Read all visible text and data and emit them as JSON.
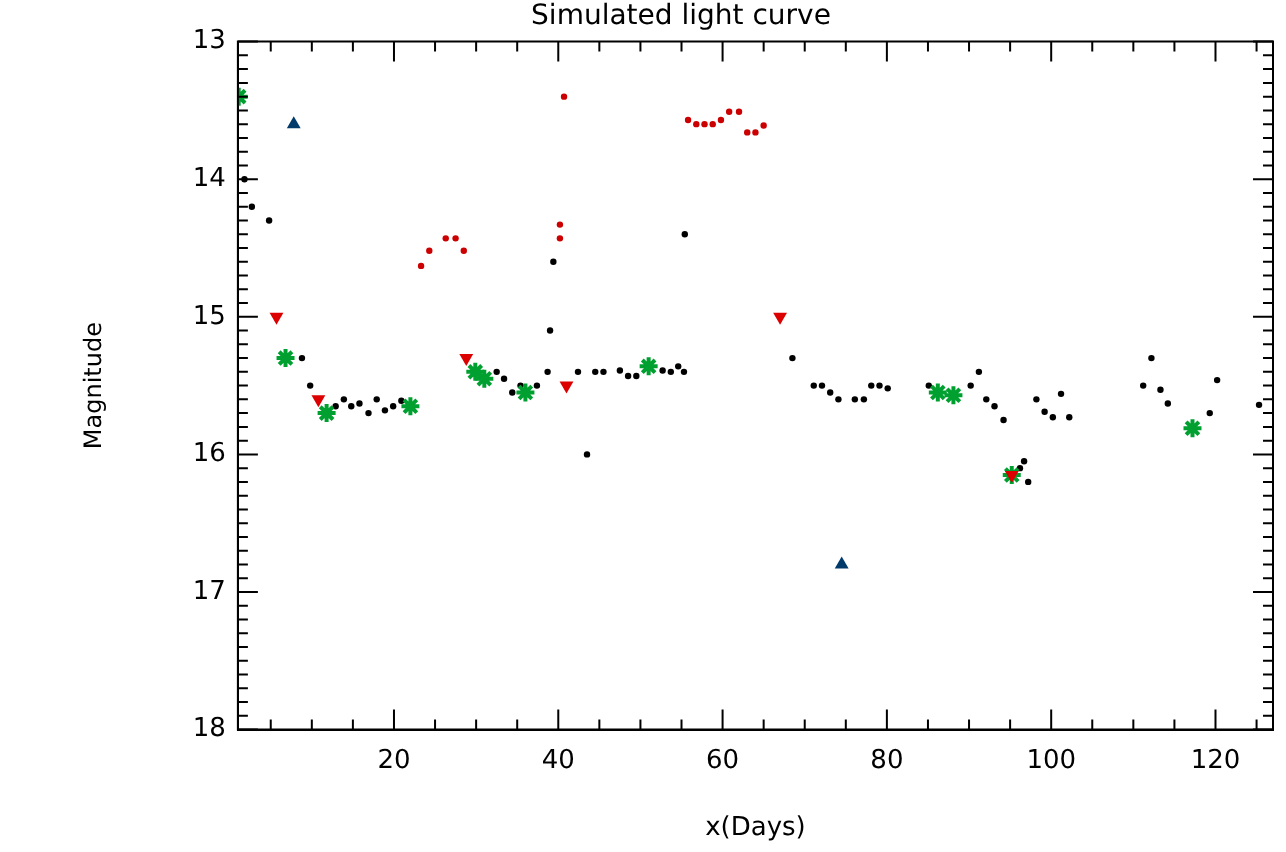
{
  "chart_data": {
    "type": "scatter",
    "title": "Simulated light curve",
    "xlabel": "x(Days)",
    "ylabel": "Magnitude",
    "xlim": [
      1,
      127
    ],
    "ylim": [
      18,
      13
    ],
    "xticks": [
      {
        "value": 5,
        "label": null
      },
      {
        "value": 10,
        "label": null
      },
      {
        "value": 15,
        "label": null
      },
      20,
      {
        "value": 25,
        "label": null
      },
      {
        "value": 30,
        "label": null
      },
      {
        "value": 35,
        "label": null
      },
      40,
      {
        "value": 45,
        "label": null
      },
      {
        "value": 50,
        "label": null
      },
      {
        "value": 55,
        "label": null
      },
      60,
      {
        "value": 65,
        "label": null
      },
      {
        "value": 70,
        "label": null
      },
      {
        "value": 75,
        "label": null
      },
      80,
      {
        "value": 85,
        "label": null
      },
      {
        "value": 90,
        "label": null
      },
      {
        "value": 95,
        "label": null
      },
      100,
      {
        "value": 105,
        "label": null
      },
      {
        "value": 110,
        "label": null
      },
      {
        "value": 115,
        "label": null
      },
      120,
      {
        "value": 125,
        "label": null
      }
    ],
    "yticks": [
      13,
      {
        "value": 13.1,
        "label": null
      },
      {
        "value": 13.2,
        "label": null
      },
      {
        "value": 13.3,
        "label": null
      },
      {
        "value": 13.4,
        "label": null
      },
      {
        "value": 13.5,
        "label": null
      },
      {
        "value": 13.6,
        "label": null
      },
      {
        "value": 13.7,
        "label": null
      },
      {
        "value": 13.8,
        "label": null
      },
      {
        "value": 13.9,
        "label": null
      },
      14,
      {
        "value": 14.1,
        "label": null
      },
      {
        "value": 14.2,
        "label": null
      },
      {
        "value": 14.3,
        "label": null
      },
      {
        "value": 14.4,
        "label": null
      },
      {
        "value": 14.5,
        "label": null
      },
      {
        "value": 14.6,
        "label": null
      },
      {
        "value": 14.7,
        "label": null
      },
      {
        "value": 14.8,
        "label": null
      },
      {
        "value": 14.9,
        "label": null
      },
      15,
      {
        "value": 15.1,
        "label": null
      },
      {
        "value": 15.2,
        "label": null
      },
      {
        "value": 15.3,
        "label": null
      },
      {
        "value": 15.4,
        "label": null
      },
      {
        "value": 15.5,
        "label": null
      },
      {
        "value": 15.6,
        "label": null
      },
      {
        "value": 15.7,
        "label": null
      },
      {
        "value": 15.8,
        "label": null
      },
      {
        "value": 15.9,
        "label": null
      },
      16,
      {
        "value": 16.1,
        "label": null
      },
      {
        "value": 16.2,
        "label": null
      },
      {
        "value": 16.3,
        "label": null
      },
      {
        "value": 16.4,
        "label": null
      },
      {
        "value": 16.5,
        "label": null
      },
      {
        "value": 16.6,
        "label": null
      },
      {
        "value": 16.7,
        "label": null
      },
      {
        "value": 16.8,
        "label": null
      },
      {
        "value": 16.9,
        "label": null
      },
      17,
      {
        "value": 17.1,
        "label": null
      },
      {
        "value": 17.2,
        "label": null
      },
      {
        "value": 17.3,
        "label": null
      },
      {
        "value": 17.4,
        "label": null
      },
      {
        "value": 17.5,
        "label": null
      },
      {
        "value": 17.6,
        "label": null
      },
      {
        "value": 17.7,
        "label": null
      },
      {
        "value": 17.8,
        "label": null
      },
      {
        "value": 17.9,
        "label": null
      },
      18
    ],
    "grid": false,
    "legend": false,
    "series": [
      {
        "color": "#000000",
        "marker": "circle",
        "x": [
          1.8,
          2.7,
          4.8,
          8.8,
          9.8,
          12.9,
          13.9,
          14.8,
          15.8,
          16.9,
          17.9,
          18.9,
          19.9,
          20.9,
          32.5,
          33.4,
          34.4,
          35.4,
          37.4,
          38.7,
          39.0,
          39.4,
          42.4,
          43.5,
          44.5,
          45.5,
          47.5,
          48.5,
          49.5,
          52.7,
          53.7,
          54.6,
          55.3,
          55.4,
          68.5,
          71.1,
          72.1,
          73.1,
          74.1,
          76.1,
          77.2,
          78.1,
          79.1,
          80.1,
          85.1,
          90.2,
          91.2,
          92.1,
          93.1,
          94.2,
          96.2,
          96.7,
          97.2,
          98.2,
          99.2,
          100.2,
          101.2,
          102.2,
          111.2,
          112.2,
          113.3,
          114.2,
          119.3,
          120.2,
          125.3
        ],
        "values": [
          14.0,
          14.2,
          14.3,
          15.3,
          15.5,
          15.65,
          15.6,
          15.65,
          15.63,
          15.7,
          15.6,
          15.68,
          15.65,
          15.61,
          15.4,
          15.45,
          15.55,
          15.5,
          15.5,
          15.4,
          15.1,
          14.6,
          15.4,
          16.0,
          15.4,
          15.4,
          15.39,
          15.43,
          15.43,
          15.39,
          15.4,
          15.36,
          15.4,
          14.4,
          15.3,
          15.5,
          15.5,
          15.55,
          15.6,
          15.6,
          15.6,
          15.5,
          15.5,
          15.52,
          15.5,
          15.5,
          15.4,
          15.6,
          15.65,
          15.75,
          16.1,
          16.05,
          16.2,
          15.6,
          15.69,
          15.73,
          15.56,
          15.73,
          15.5,
          15.3,
          15.53,
          15.63,
          15.7,
          15.46,
          15.64
        ]
      },
      {
        "color": "#cc0000",
        "marker": "circle",
        "x": [
          23.3,
          24.3,
          26.3,
          27.5,
          28.5,
          40.7,
          40.2,
          40.2,
          55.8,
          56.8,
          57.8,
          58.8,
          59.8,
          60.8,
          62.0,
          63.0,
          64.0,
          65.0
        ],
        "values": [
          14.63,
          14.52,
          14.43,
          14.43,
          14.52,
          13.4,
          14.33,
          14.43,
          13.57,
          13.6,
          13.6,
          13.6,
          13.57,
          13.51,
          13.51,
          13.66,
          13.66,
          13.61
        ]
      },
      {
        "color": "#00a030",
        "marker": "cross",
        "x": [
          1.1,
          6.8,
          11.8,
          22.0,
          29.9,
          31.0,
          36.0,
          51.0,
          86.2,
          88.1,
          95.2,
          117.2
        ],
        "values": [
          13.4,
          15.3,
          15.7,
          15.65,
          15.4,
          15.45,
          15.55,
          15.36,
          15.55,
          15.57,
          16.15,
          15.81
        ]
      },
      {
        "color": "#dd0000",
        "marker": "triangle-down",
        "x": [
          5.7,
          10.8,
          28.8,
          41.0,
          67.0,
          95.2
        ],
        "values": [
          15.0,
          15.6,
          15.3,
          15.5,
          15.0,
          16.15
        ]
      },
      {
        "color": "#003a6a",
        "marker": "triangle",
        "x": [
          7.8,
          74.5
        ],
        "values": [
          13.6,
          16.8
        ]
      }
    ]
  }
}
